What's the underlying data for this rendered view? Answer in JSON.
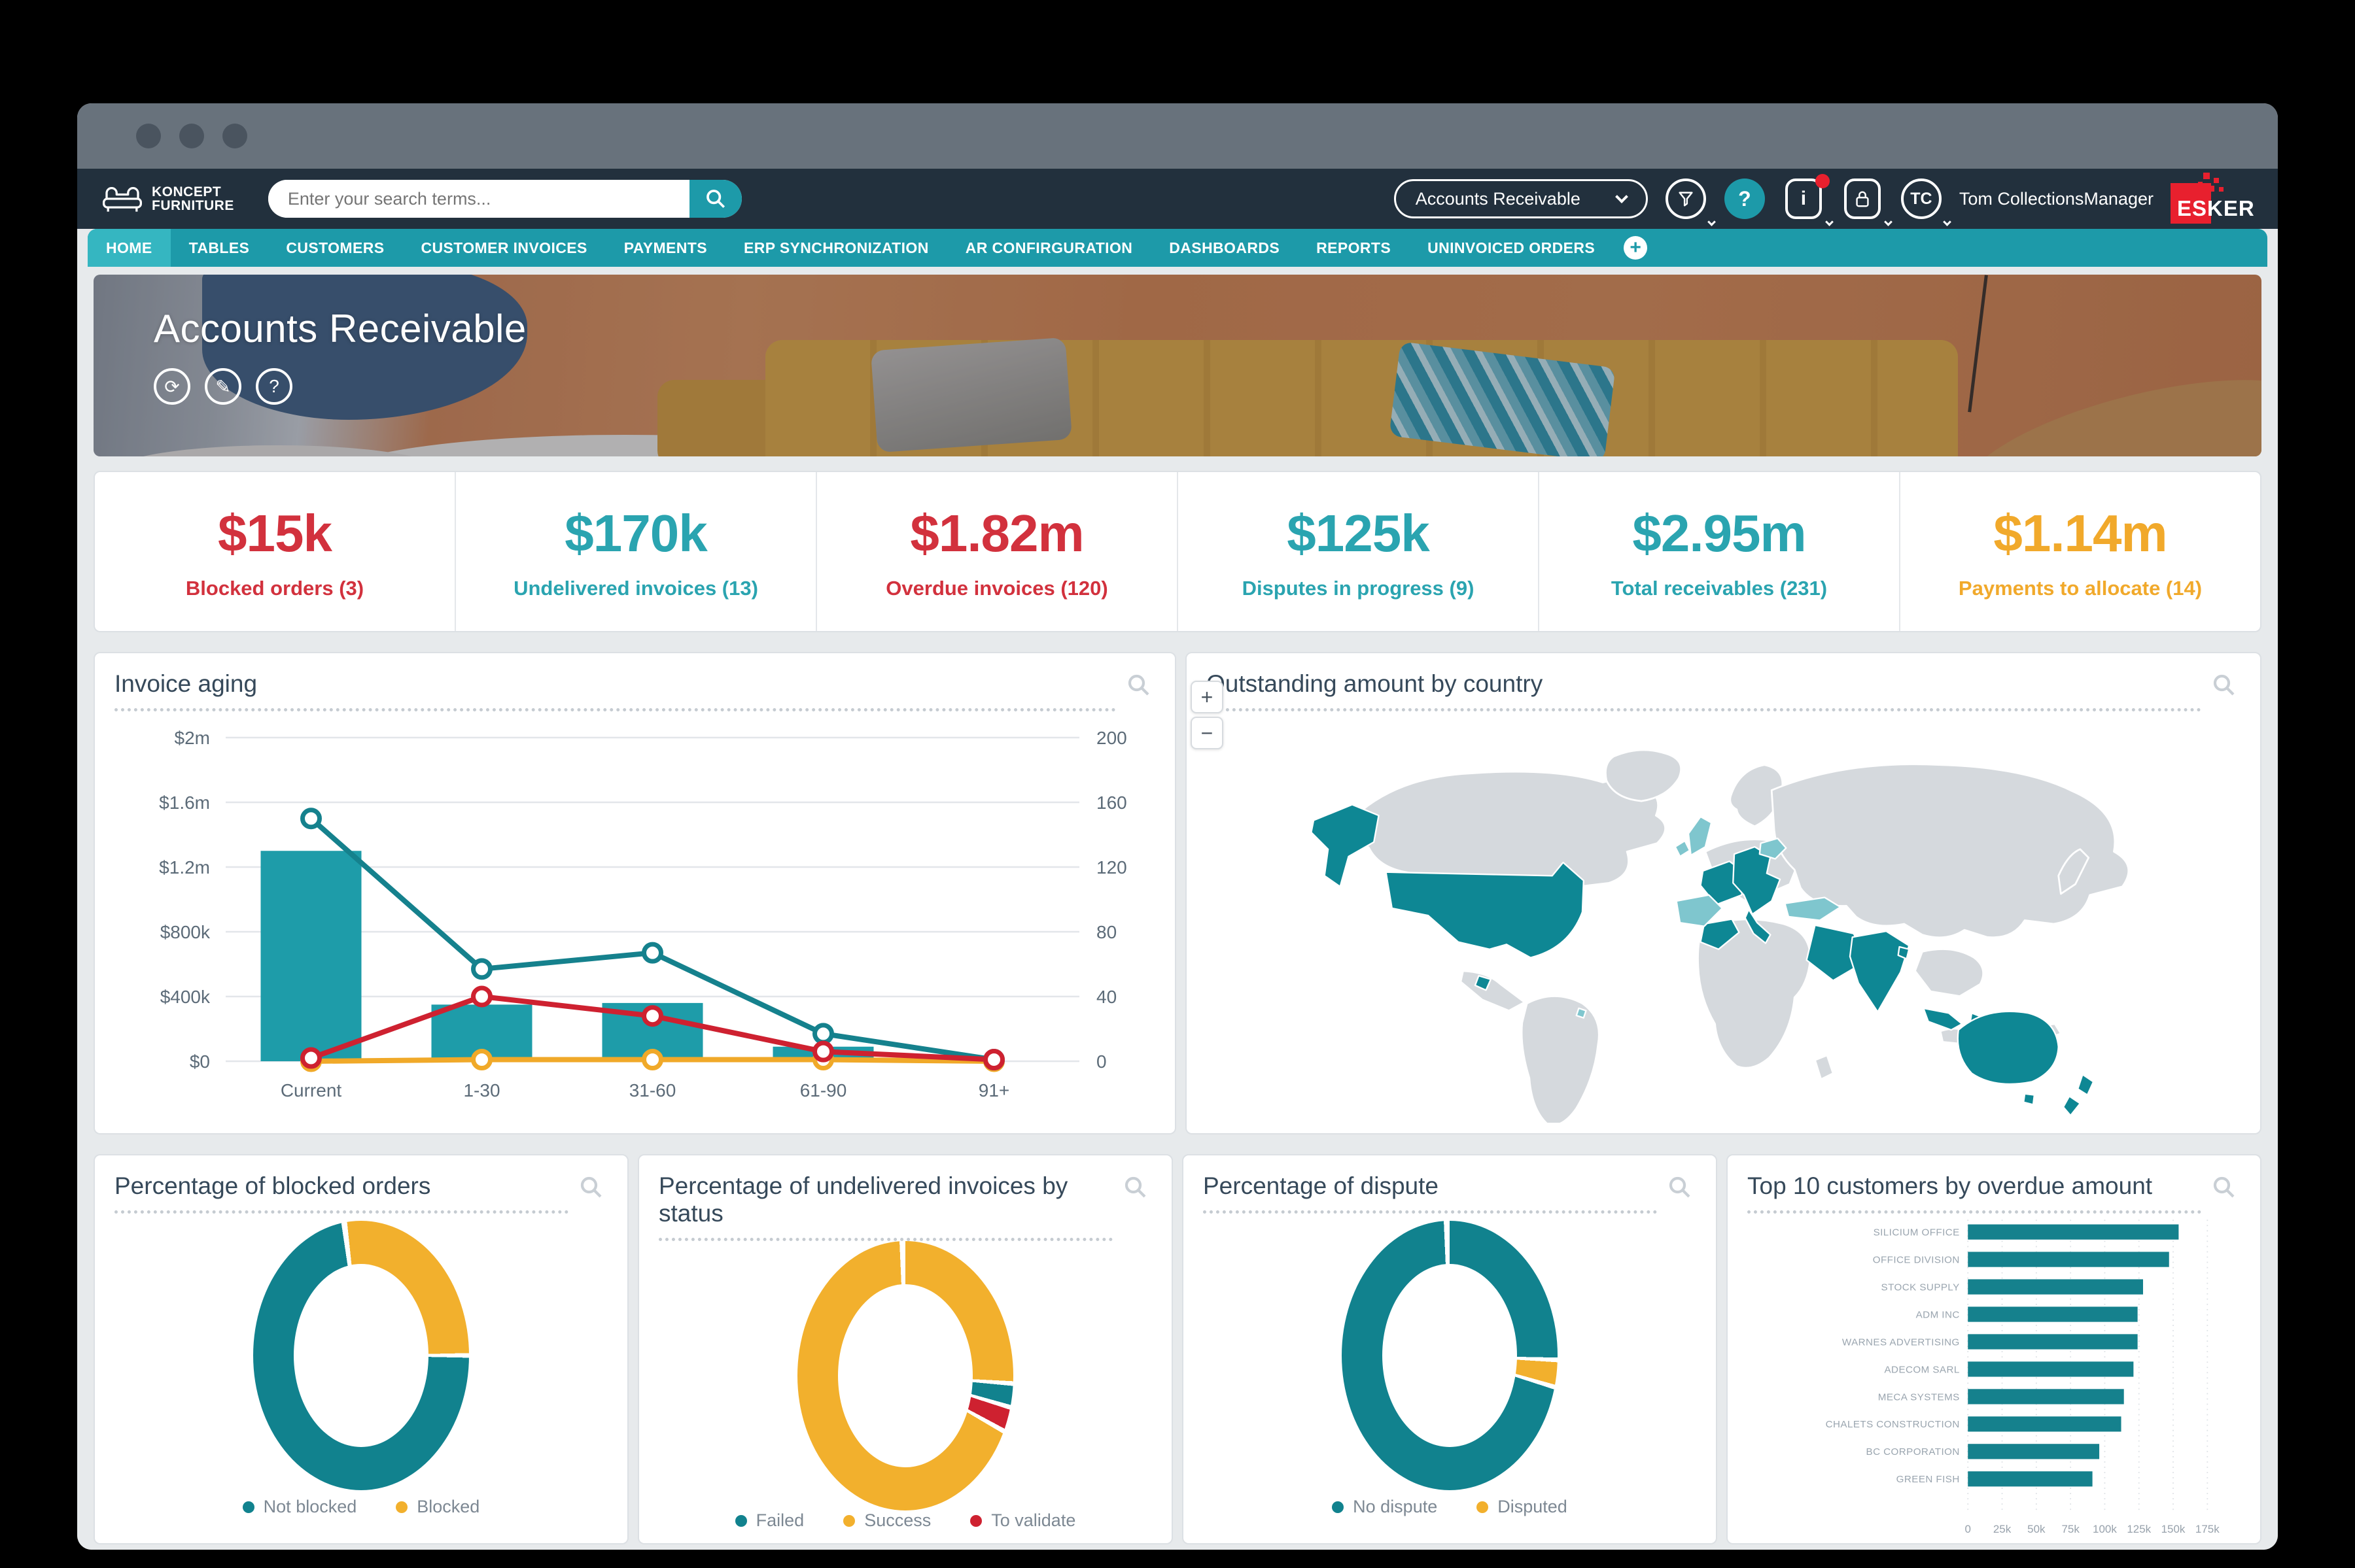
{
  "toolbar": {
    "brand_line1": "KONCEPT",
    "brand_line2": "FURNITURE",
    "search_placeholder": "Enter your search terms...",
    "app_selector": "Accounts Receivable",
    "user_initials": "TC",
    "user_name": "Tom CollectionsManager",
    "esker_wordmark": "ESKER",
    "help_glyph": "?",
    "info_glyph": "i"
  },
  "tabs": {
    "items": [
      {
        "label": "HOME",
        "active": true
      },
      {
        "label": "TABLES"
      },
      {
        "label": "CUSTOMERS"
      },
      {
        "label": "CUSTOMER INVOICES"
      },
      {
        "label": "PAYMENTS"
      },
      {
        "label": "ERP SYNCHRONIZATION"
      },
      {
        "label": "AR CONFIRGURATION"
      },
      {
        "label": "DASHBOARDS"
      },
      {
        "label": "REPORTS"
      },
      {
        "label": "UNINVOICED ORDERS"
      }
    ],
    "add_label": "+"
  },
  "hero": {
    "title": "Accounts Receivable"
  },
  "kpis": [
    {
      "value": "$15k",
      "label": "Blocked orders (3)",
      "color": "#D2313D"
    },
    {
      "value": "$170k",
      "label": "Undelivered invoices (13)",
      "color": "#2AA4B0"
    },
    {
      "value": "$1.82m",
      "label": "Overdue invoices (120)",
      "color": "#D2313D"
    },
    {
      "value": "$125k",
      "label": "Disputes in progress (9)",
      "color": "#2AA4B0"
    },
    {
      "value": "$2.95m",
      "label": "Total receivables (231)",
      "color": "#2AA4B0"
    },
    {
      "value": "$1.14m",
      "label": "Payments to allocate (14)",
      "color": "#F1A92B"
    }
  ],
  "panels": {
    "map_title": "Outstanding amount by country",
    "map_zoom_in": "+",
    "map_zoom_out": "−"
  },
  "chart_data": [
    {
      "id": "invoice_aging",
      "type": "bar+line",
      "title": "Invoice aging",
      "categories": [
        "Current",
        "1-30",
        "31-60",
        "61-90",
        "91+"
      ],
      "y_left": {
        "ticks": [
          "$0",
          "$400k",
          "$800k",
          "$1.2m",
          "$1.6m",
          "$2m"
        ],
        "max": 2000000
      },
      "y_right": {
        "ticks": [
          "0",
          "40",
          "80",
          "120",
          "160",
          "200"
        ],
        "max": 200
      },
      "bars": {
        "name": "Outstanding amount",
        "color": "#1E9CA9",
        "axis": "left",
        "values": [
          1300000,
          350000,
          360000,
          90000,
          0
        ]
      },
      "lines": [
        {
          "name": "invoice-count-line",
          "color": "#15818D",
          "axis": "right",
          "values": [
            150,
            57,
            67,
            17,
            1
          ]
        },
        {
          "name": "overdue-count-line",
          "color": "#CE2130",
          "axis": "right",
          "values": [
            2,
            40,
            28,
            6,
            1
          ]
        },
        {
          "name": "other-count-line",
          "color": "#F0A929",
          "axis": "right",
          "values": [
            0,
            1,
            1,
            1,
            0
          ]
        }
      ],
      "grid": true,
      "legend_visible": false
    },
    {
      "id": "blocked_orders",
      "type": "pie",
      "title": "Percentage of blocked orders",
      "rotate": -6,
      "segments": [
        {
          "label": "Blocked",
          "color": "#F2B02D",
          "pct": 27
        },
        {
          "label": "Not blocked",
          "color": "#11828E",
          "pct": 73
        }
      ],
      "legend": [
        {
          "label": "Not blocked",
          "color": "#11828E"
        },
        {
          "label": "Blocked",
          "color": "#F2B02D"
        }
      ]
    },
    {
      "id": "undelivered_invoices",
      "type": "pie",
      "title": "Percentage of undelivered invoices by status",
      "rotate": 0,
      "segments": [
        {
          "label": "Success",
          "color": "#F2B02D",
          "pct": 26.5
        },
        {
          "label": "Failed",
          "color": "#11828E",
          "pct": 3.5
        },
        {
          "label": "To validate",
          "color": "#CE2130",
          "pct": 3.5
        },
        {
          "label": "Success",
          "color": "#F2B02D",
          "pct": 66.5
        }
      ],
      "legend": [
        {
          "label": "Failed",
          "color": "#11828E"
        },
        {
          "label": "Success",
          "color": "#F2B02D"
        },
        {
          "label": "To validate",
          "color": "#CE2130"
        }
      ]
    },
    {
      "id": "dispute",
      "type": "pie",
      "title": "Percentage of dispute",
      "rotate": 0,
      "segments": [
        {
          "label": "No dispute",
          "color": "#11828E",
          "pct": 26
        },
        {
          "label": "Disputed",
          "color": "#F2B02D",
          "pct": 4
        },
        {
          "label": "No dispute",
          "color": "#11828E",
          "pct": 70
        }
      ],
      "legend": [
        {
          "label": "No dispute",
          "color": "#11828E"
        },
        {
          "label": "Disputed",
          "color": "#F2B02D"
        }
      ]
    },
    {
      "id": "top10",
      "type": "bar",
      "orientation": "horizontal",
      "title": "Top 10 customers by overdue amount",
      "bar_color": "#15818D",
      "categories": [
        "SILICIUM OFFICE",
        "OFFICE DIVISION",
        "STOCK SUPPLY",
        "ADM INC",
        "WARNES ADVERTISING",
        "ADECOM SARL",
        "MECA SYSTEMS",
        "CHALETS CONSTRUCTION",
        "BC CORPORATION",
        "GREEN FISH"
      ],
      "values": [
        154000,
        147000,
        128000,
        124000,
        124000,
        121000,
        114000,
        112000,
        96000,
        91000
      ],
      "x_ticks": [
        {
          "label": "0",
          "v": 0
        },
        {
          "label": "25k",
          "v": 25000
        },
        {
          "label": "50k",
          "v": 50000
        },
        {
          "label": "75k",
          "v": 75000
        },
        {
          "label": "100k",
          "v": 100000
        },
        {
          "label": "125k",
          "v": 125000
        },
        {
          "label": "150k",
          "v": 150000
        },
        {
          "label": "175k",
          "v": 175000
        }
      ],
      "xmax": 175000
    }
  ],
  "colors": {
    "nav_teal": "#1D9AA9",
    "active_tab": "#35B6C1",
    "toolbar_navy": "#22303D",
    "status_red": "#D2313D",
    "status_teal": "#2AA4B0",
    "status_yellow": "#F1A92B",
    "map_highlight": "#0E8794",
    "map_highlight_light": "#7FC6CE",
    "map_land": "#D5D9DD"
  }
}
